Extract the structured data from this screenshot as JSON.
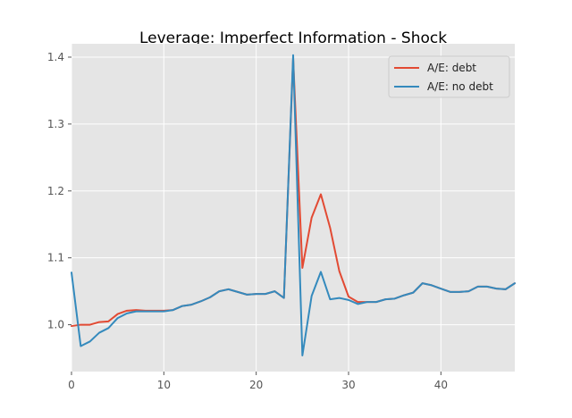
{
  "chart_data": {
    "type": "line",
    "title": "Leverage: Imperfect Information - Shock",
    "xlabel": "",
    "ylabel": "",
    "xlim": [
      0,
      48
    ],
    "ylim": [
      0.93,
      1.42
    ],
    "xticks": [
      0,
      10,
      20,
      30,
      40
    ],
    "yticks": [
      1.0,
      1.1,
      1.2,
      1.3,
      1.4
    ],
    "ytick_labels": [
      "1.0",
      "1.1",
      "1.2",
      "1.3",
      "1.4"
    ],
    "grid": true,
    "legend_position": "top-right",
    "series": [
      {
        "name": "A/E: debt",
        "color": "#E24A33",
        "x": [
          0,
          1,
          2,
          3,
          4,
          5,
          6,
          7,
          8,
          9,
          10,
          11,
          12,
          13,
          14,
          15,
          16,
          17,
          18,
          19,
          20,
          21,
          22,
          23,
          24,
          25,
          26,
          27,
          28,
          29,
          30,
          31,
          32,
          33,
          34,
          35,
          36,
          37,
          38,
          39,
          40,
          41,
          42,
          43,
          44,
          45,
          46,
          47,
          48
        ],
        "values": [
          0.998,
          1.0,
          1.0,
          1.004,
          1.005,
          1.016,
          1.021,
          1.022,
          1.021,
          1.021,
          1.021,
          1.022,
          1.028,
          1.03,
          1.035,
          1.041,
          1.05,
          1.053,
          1.049,
          1.045,
          1.046,
          1.046,
          1.05,
          1.04,
          1.398,
          1.085,
          1.16,
          1.195,
          1.145,
          1.08,
          1.042,
          1.034,
          1.034,
          1.034,
          1.038,
          1.039,
          1.044,
          1.048,
          1.062,
          1.059,
          1.054,
          1.049,
          1.049,
          1.05,
          1.057,
          1.057,
          1.054,
          1.053,
          1.062
        ]
      },
      {
        "name": "A/E: no debt",
        "color": "#348ABD",
        "x": [
          0,
          1,
          2,
          3,
          4,
          5,
          6,
          7,
          8,
          9,
          10,
          11,
          12,
          13,
          14,
          15,
          16,
          17,
          18,
          19,
          20,
          21,
          22,
          23,
          24,
          25,
          26,
          27,
          28,
          29,
          30,
          31,
          32,
          33,
          34,
          35,
          36,
          37,
          38,
          39,
          40,
          41,
          42,
          43,
          44,
          45,
          46,
          47,
          48
        ],
        "values": [
          1.078,
          0.968,
          0.975,
          0.988,
          0.995,
          1.01,
          1.017,
          1.02,
          1.02,
          1.02,
          1.02,
          1.022,
          1.028,
          1.03,
          1.035,
          1.041,
          1.05,
          1.053,
          1.049,
          1.045,
          1.046,
          1.046,
          1.05,
          1.04,
          1.403,
          0.954,
          1.043,
          1.079,
          1.038,
          1.04,
          1.037,
          1.031,
          1.034,
          1.034,
          1.038,
          1.039,
          1.044,
          1.048,
          1.062,
          1.059,
          1.054,
          1.049,
          1.049,
          1.05,
          1.057,
          1.057,
          1.054,
          1.053,
          1.062
        ]
      }
    ]
  }
}
